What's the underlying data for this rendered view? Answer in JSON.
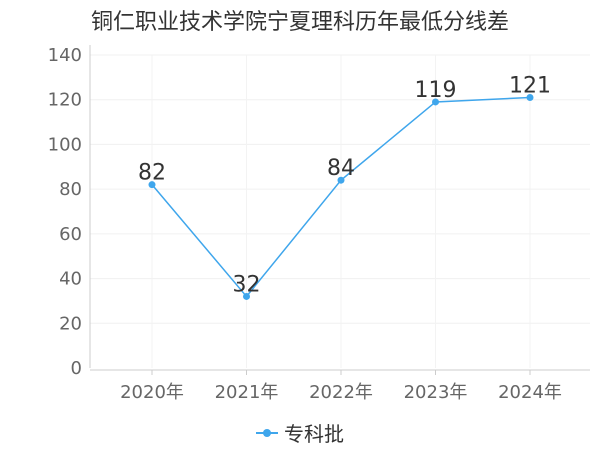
{
  "chart_data": {
    "type": "line",
    "title": "铜仁职业技术学院宁夏理科历年最低分线差",
    "categories": [
      "2020年",
      "2021年",
      "2022年",
      "2023年",
      "2024年"
    ],
    "series": [
      {
        "name": "专科批",
        "values": [
          82,
          32,
          84,
          119,
          121
        ],
        "color": "#3fa6ec"
      }
    ],
    "ylim": [
      0,
      140
    ],
    "yticks": [
      0,
      20,
      40,
      60,
      80,
      100,
      120,
      140
    ],
    "grid": true,
    "legend": "bottom-center"
  }
}
